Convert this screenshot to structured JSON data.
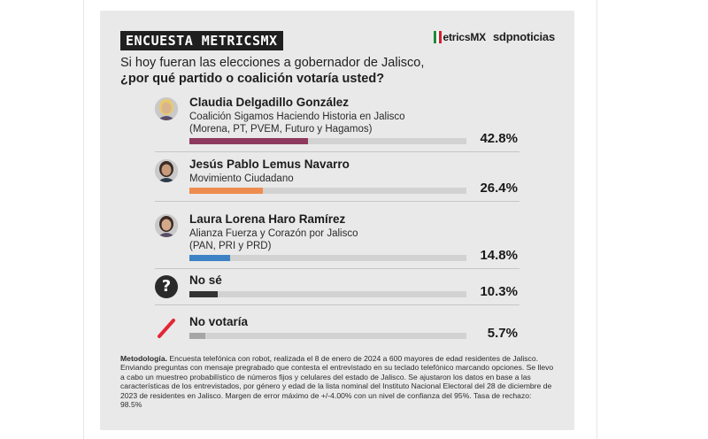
{
  "header": {
    "badge": "ENCUESTA METRICSMX",
    "logo_metrics": "etricsMX",
    "logo_sdp": "sdpnoticias",
    "question_line1": "Si hoy fueran las elecciones a gobernador de Jalisco,",
    "question_line2": "¿por qué partido o coalición votaría usted?"
  },
  "colors": {
    "card_bg": "#e9e9e9",
    "track": "#d2d2d2",
    "morena": "#8e3a5e",
    "mc": "#ee8c4f",
    "pan_pri_prd": "#3d82c4",
    "no_se": "#333333",
    "no_votaria": "#a6a6a6",
    "slash_red": "#e32636"
  },
  "chart_data": {
    "type": "bar",
    "categories": [
      "Claudia Delgadillo González",
      "Jesús Pablo Lemus Navarro",
      "Laura Lorena Haro Ramírez",
      "No sé",
      "No votaría"
    ],
    "values": [
      42.8,
      26.4,
      14.8,
      10.3,
      5.7
    ],
    "ylim": [
      0,
      100
    ],
    "orientation": "horizontal",
    "rows": [
      {
        "name": "Claudia Delgadillo González",
        "detail1": "Coalición Sigamos Haciendo Historia en Jalisco",
        "detail2": "(Morena, PT, PVEM, Futuro y Hagamos)",
        "value": 42.8,
        "label": "42.8%",
        "color": "#8e3a5e",
        "icon": "candidate-photo-icon"
      },
      {
        "name": "Jesús Pablo Lemus Navarro",
        "detail1": "Movimiento Ciudadano",
        "detail2": "",
        "value": 26.4,
        "label": "26.4%",
        "color": "#ee8c4f",
        "icon": "candidate-photo-icon"
      },
      {
        "name": "Laura Lorena Haro Ramírez",
        "detail1": "Alianza Fuerza y Corazón por Jalisco",
        "detail2": "(PAN, PRI y PRD)",
        "value": 14.8,
        "label": "14.8%",
        "color": "#3d82c4",
        "icon": "candidate-photo-icon"
      },
      {
        "name": "No sé",
        "detail1": "",
        "detail2": "",
        "value": 10.3,
        "label": "10.3%",
        "color": "#333333",
        "icon": "question-mark-icon"
      },
      {
        "name": "No votaría",
        "detail1": "",
        "detail2": "",
        "value": 5.7,
        "label": "5.7%",
        "color": "#a6a6a6",
        "icon": "slash-icon"
      }
    ]
  },
  "methodology": {
    "label": "Metodología.",
    "text": "Encuesta telefónica con robot, realizada el 8 de enero de 2024 a 600 mayores de edad residentes de Jalisco. Enviando preguntas con mensaje pregrabado que contesta el entrevistado en su teclado telefónico marcando opciones. Se llevo a cabo un muestreo probabilístico de números fijos y celulares del estado de Jalisco. Se ajustaron los datos en base a las características de los entrevistados, por género y edad de la lista nominal del Instituto Nacional Electoral del 28 de diciembre de 2023 de residentes en Jalisco. Margen de error máximo de +/-4.00% con un nivel de confianza del 95%. Tasa de rechazo: 98.5%"
  }
}
